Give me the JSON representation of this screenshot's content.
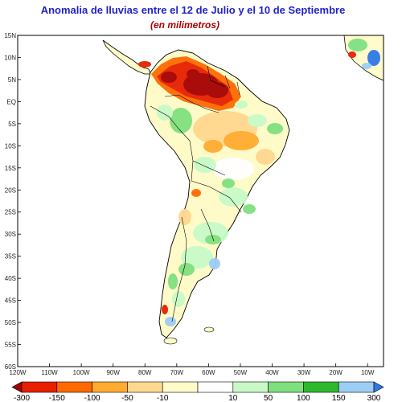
{
  "title": "Anomalia de lluvias entre el 12 de Julio y el 10 de Septiembre",
  "subtitle": "(en milimetros)",
  "map": {
    "lat_labels": [
      "15N",
      "10N",
      "5N",
      "EQ",
      "5S",
      "10S",
      "15S",
      "20S",
      "25S",
      "30S",
      "35S",
      "40S",
      "45S",
      "50S",
      "55S",
      "60S"
    ],
    "lon_labels": [
      "120W",
      "110W",
      "100W",
      "90W",
      "80W",
      "70W",
      "60W",
      "50W",
      "40W",
      "30W",
      "20W",
      "10W"
    ],
    "lon_range": [
      -120,
      -5
    ],
    "lat_range": [
      -60,
      15
    ]
  },
  "legend": {
    "labels": [
      "-300",
      "-150",
      "-100",
      "-50",
      "-10",
      "10",
      "50",
      "100",
      "150",
      "300"
    ],
    "colors": [
      "#a50000",
      "#e62000",
      "#ff6a00",
      "#ffaa30",
      "#ffd890",
      "#fffbc8",
      "#ffffff",
      "#c8fac8",
      "#7fe07f",
      "#2eb82e",
      "#9ccdf5",
      "#2e78e6"
    ]
  },
  "colors": {
    "title": "#2222cc",
    "subtitle": "#b00000"
  }
}
